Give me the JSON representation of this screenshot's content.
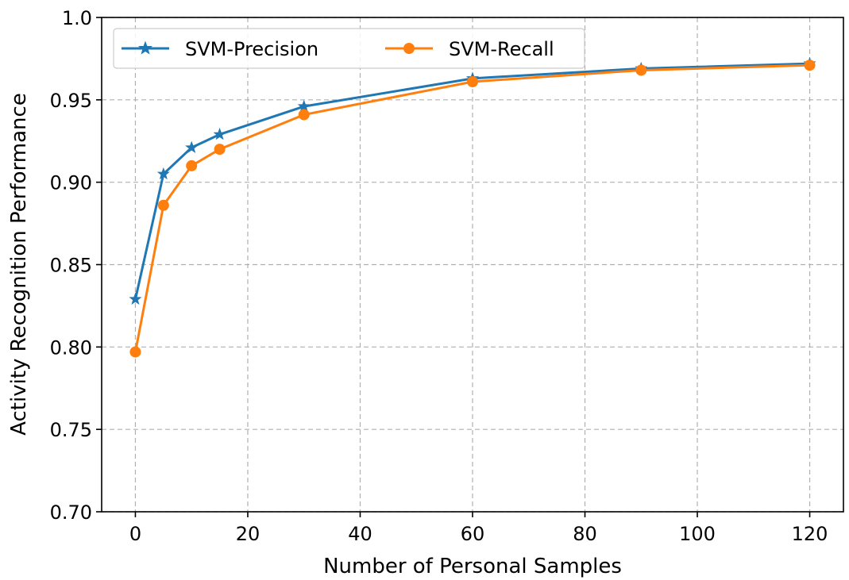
{
  "chart_data": {
    "type": "line",
    "title": "",
    "xlabel": "Number of Personal Samples",
    "ylabel": "Activity Recognition Performance",
    "xlim": [
      -6,
      126
    ],
    "ylim": [
      0.7,
      1.0
    ],
    "xticks": [
      0,
      20,
      40,
      60,
      80,
      100,
      120
    ],
    "xtick_labels": [
      "0",
      "20",
      "40",
      "60",
      "80",
      "100",
      "120"
    ],
    "yticks": [
      0.7,
      0.75,
      0.8,
      0.85,
      0.9,
      0.95,
      1.0
    ],
    "ytick_labels": [
      "0.70",
      "0.75",
      "0.80",
      "0.85",
      "0.90",
      "0.95",
      "1.0"
    ],
    "grid": true,
    "legend_position": "upper-left",
    "x": [
      0,
      5,
      10,
      15,
      30,
      60,
      90,
      120
    ],
    "series": [
      {
        "name": "SVM-Precision",
        "color": "#1f77b4",
        "marker": "star",
        "values": [
          0.829,
          0.905,
          0.921,
          0.929,
          0.946,
          0.963,
          0.969,
          0.972
        ]
      },
      {
        "name": "SVM-Recall",
        "color": "#ff7f0e",
        "marker": "circle",
        "values": [
          0.797,
          0.886,
          0.91,
          0.92,
          0.941,
          0.961,
          0.968,
          0.971
        ]
      }
    ]
  }
}
